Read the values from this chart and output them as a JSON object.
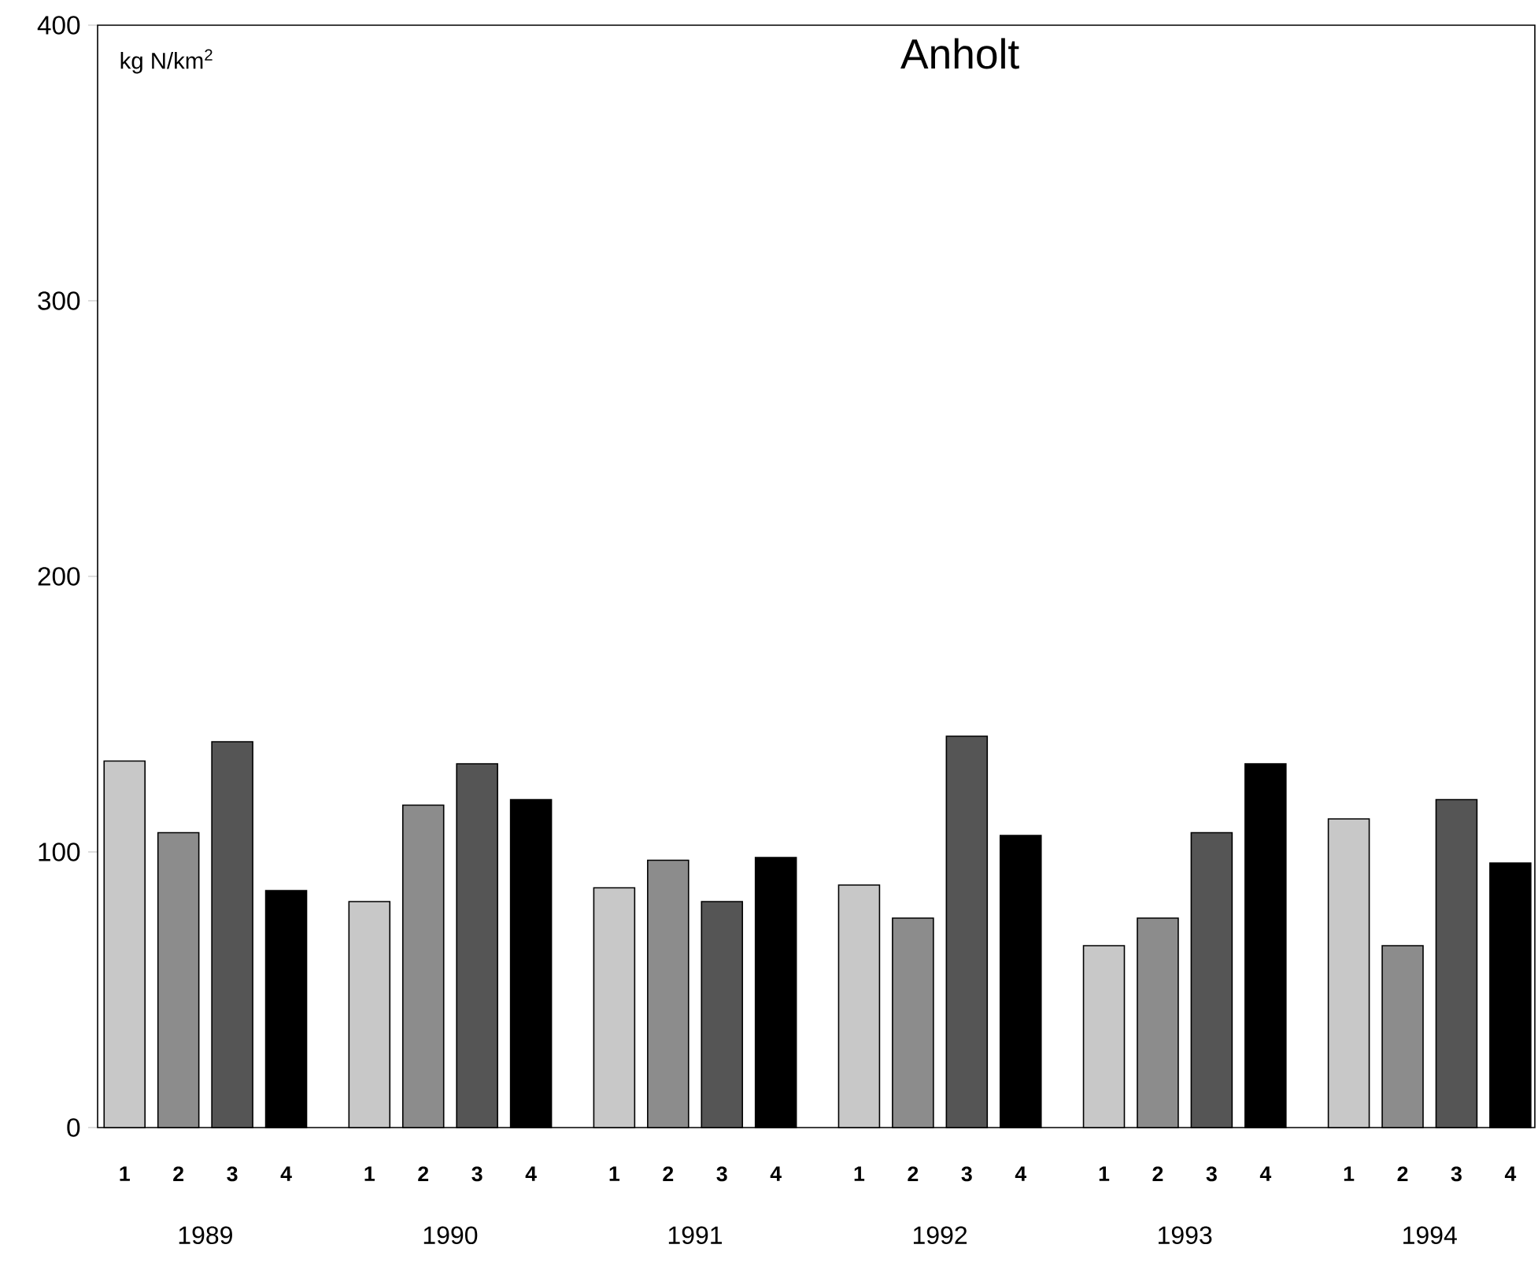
{
  "chart_data": {
    "type": "bar",
    "title": "Anholt",
    "ylabel": "kg N/km$^{2}$",
    "categories": [
      "1989",
      "1990",
      "1991",
      "1992",
      "1993",
      "1994"
    ],
    "series": [
      {
        "name": "1",
        "color": "#c8c8c8",
        "values": [
          133,
          82,
          87,
          88,
          66,
          112
        ]
      },
      {
        "name": "2",
        "color": "#8c8c8c",
        "values": [
          107,
          117,
          97,
          76,
          76,
          66
        ]
      },
      {
        "name": "3",
        "color": "#555555",
        "values": [
          140,
          132,
          82,
          142,
          107,
          119
        ]
      },
      {
        "name": "4",
        "color": "#000000",
        "values": [
          86,
          119,
          98,
          106,
          132,
          96
        ]
      }
    ],
    "ylim": [
      0,
      400
    ],
    "yticks": [
      0,
      100,
      200,
      300,
      400
    ]
  }
}
